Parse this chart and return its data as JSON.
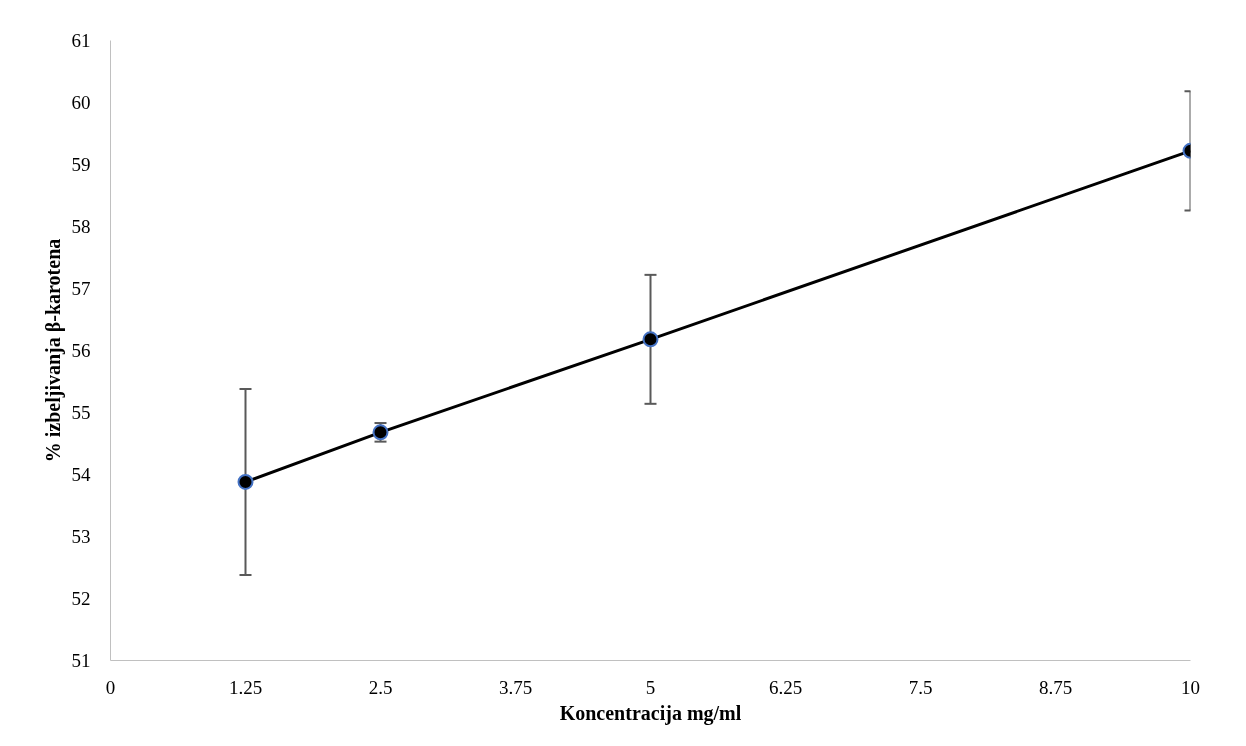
{
  "chart_data": {
    "type": "line",
    "xlabel": "Koncentracija mg/ml",
    "ylabel": "% izbeljivanja β-karotena",
    "x": [
      1.25,
      2.5,
      5,
      10
    ],
    "series": [
      {
        "color": "#000000",
        "values": [
          53.88,
          54.68,
          56.18,
          59.22
        ],
        "errors": [
          1.5,
          0.15,
          1.04,
          0.96
        ]
      }
    ],
    "xlim": [
      0,
      10
    ],
    "xticks": [
      0,
      1.25,
      2.5,
      3.75,
      5,
      6.25,
      7.5,
      8.75,
      10
    ],
    "ylim": [
      51,
      61
    ],
    "yticks": [
      51,
      52,
      53,
      54,
      55,
      56,
      57,
      58,
      59,
      60,
      61
    ],
    "grid": false,
    "marker": "circle",
    "line_style": "solid"
  }
}
